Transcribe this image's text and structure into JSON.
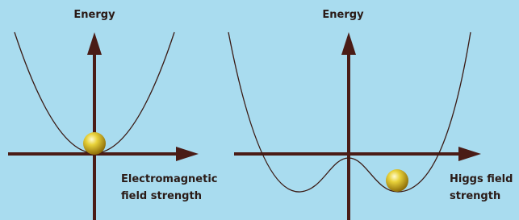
{
  "panels": [
    {
      "y_label": "Energy",
      "x_label": [
        "Electromagnetic",
        "field strength"
      ]
    },
    {
      "y_label": "Energy",
      "x_label": [
        "Higgs field",
        "strength"
      ]
    }
  ]
}
